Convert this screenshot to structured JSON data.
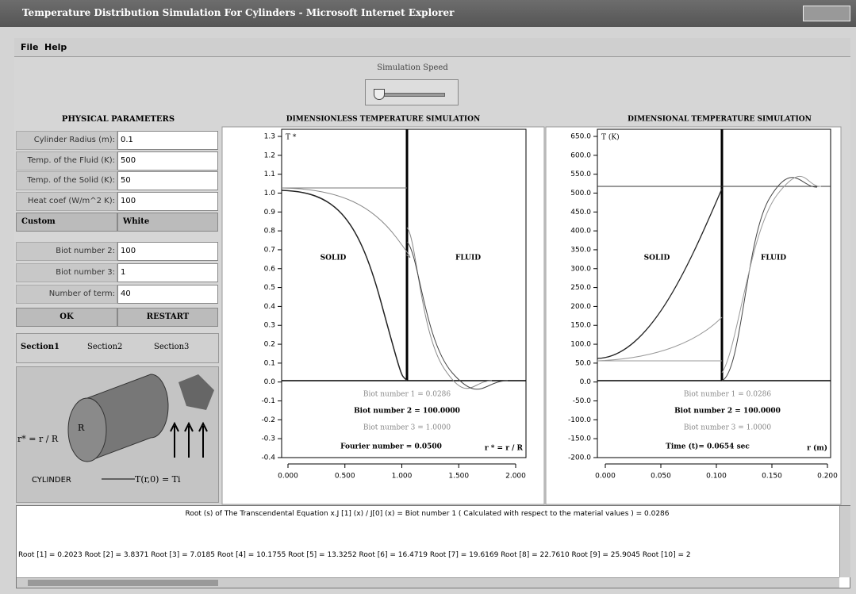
{
  "window": {
    "title": "Temperature Distribution Simulation For Cylinders - Microsoft Internet Explorer"
  },
  "menu": [
    "File",
    "Help"
  ],
  "speed": {
    "label": "Simulation Speed"
  },
  "physical": {
    "title": "PHYSICAL PARAMETERS",
    "fields": [
      {
        "label": "Cylinder Radius (m):",
        "value": "0.1"
      },
      {
        "label": "Temp. of the Fluid (K):",
        "value": "500"
      },
      {
        "label": "Temp. of the Solid (K):",
        "value": "50"
      },
      {
        "label": "Heat coef (W/m^2 K):",
        "value": "100"
      }
    ],
    "dropdowns": [
      "Custom",
      "White"
    ],
    "fields2": [
      {
        "label": "Biot number 2:",
        "value": "100"
      },
      {
        "label": "Biot number 3:",
        "value": "1"
      },
      {
        "label": "Number of term:",
        "value": "40"
      }
    ],
    "buttons": [
      "OK",
      "RESTART"
    ],
    "radios": [
      "Section1",
      "Section2",
      "Section3"
    ],
    "figure": {
      "radius": "R",
      "rstar": "r* = r / R",
      "initial": "T(r,0) = Ti",
      "caption": "CYLINDER"
    }
  },
  "plots": [
    {
      "title": "DIMENSIONLESS TEMPERATURE SIMULATION",
      "ylabel": "T *",
      "solid": "SOLID",
      "fluid": "FLUID",
      "yticks": [
        "1.3",
        "1.2",
        "1.1",
        "1.0",
        "0.9",
        "0.8",
        "0.7",
        "0.6",
        "0.5",
        "0.4",
        "0.3",
        "0.2",
        "0.1",
        "0.0",
        "-0.1",
        "-0.2",
        "-0.3",
        "-0.4"
      ],
      "xticks": [
        "0.000",
        "0.500",
        "1.000",
        "1.500",
        "2.000"
      ],
      "notes": [
        "Biot number 1 = 0.0286",
        "Biot number 2 = 100.0000",
        "Biot number 3 = 1.0000"
      ],
      "footer": "Fourier number = 0.0500",
      "xlabel": "r * = r / R"
    },
    {
      "title": "DIMENSIONAL TEMPERATURE SIMULATION",
      "ylabel": "T (K)",
      "solid": "SOLID",
      "fluid": "FLUID",
      "yticks": [
        "650.0",
        "600.0",
        "550.0",
        "500.0",
        "450.0",
        "400.0",
        "350.0",
        "300.0",
        "250.0",
        "200.0",
        "150.0",
        "100.0",
        "50.0",
        "0.0",
        "-50.0",
        "-100.0",
        "-150.0",
        "-200.0"
      ],
      "xticks": [
        "0.000",
        "0.050",
        "0.100",
        "0.150",
        "0.200"
      ],
      "notes": [
        "Biot number 1 = 0.0286",
        "Biot number 2 = 100.0000",
        "Biot number 3 = 1.0000"
      ],
      "footer": "Time (t)= 0.0654 sec",
      "xlabel": "r (m)"
    }
  ],
  "output": [
    "Root (s) of The Transcendental  Equation  x.J [1] (x) / J[0] (x) =  Biot number 1 ( Calculated with respect to the material values ) = 0.0286",
    "Root [1] = 0.2023  Root [2] = 3.8371  Root [3] = 7.0185  Root [4] = 10.1755  Root [5] = 13.3252  Root [6] = 16.4719  Root [7] = 19.6169  Root [8] = 22.7610  Root [9] = 25.9045  Root [10] = 2"
  ]
}
